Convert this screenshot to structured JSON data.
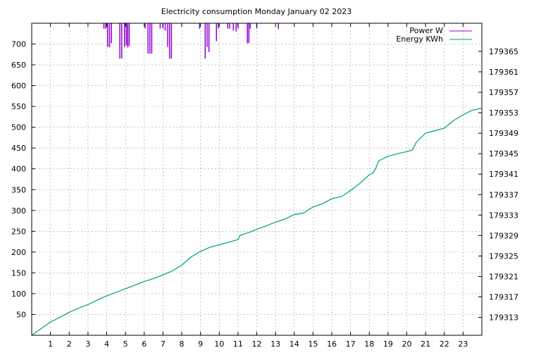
{
  "chart_data": {
    "type": "line",
    "title": "Electricity consumption Monday January 02 2023",
    "xlabel": "",
    "ylabel": "",
    "y2label": "",
    "x_ticks": [
      "1",
      "2",
      "3",
      "4",
      "5",
      "6",
      "7",
      "8",
      "9",
      "10",
      "11",
      "12",
      "13",
      "14",
      "15",
      "16",
      "17",
      "18",
      "19",
      "20",
      "21",
      "22",
      "23"
    ],
    "y_ticks": [
      "50",
      "100",
      "150",
      "200",
      "250",
      "300",
      "350",
      "400",
      "450",
      "500",
      "550",
      "600",
      "650",
      "700"
    ],
    "y2_ticks": [
      "179313",
      "179317",
      "179321",
      "179325",
      "179329",
      "179333",
      "179337",
      "179341",
      "179345",
      "179349",
      "179353",
      "179357",
      "179361",
      "179365"
    ],
    "xlim": [
      0,
      24
    ],
    "ylim": [
      0,
      750
    ],
    "y2lim": [
      179309.5,
      179370.5
    ],
    "grid": true,
    "legend_position": "top-right",
    "series": [
      {
        "name": "Power W",
        "axis": "y1",
        "color": "#9400d3",
        "style": "impulses",
        "x": [
          3.85,
          3.95,
          4.05,
          4.15,
          4.25,
          4.7,
          4.8,
          4.95,
          5.05,
          5.12,
          5.2,
          6.05,
          6.2,
          6.3,
          6.4,
          6.85,
          7.0,
          7.12,
          7.25,
          7.35,
          7.45,
          8.95,
          9.25,
          9.35,
          9.45,
          9.85,
          9.95,
          10.45,
          10.55,
          10.75,
          10.9,
          11.0,
          11.5,
          11.58,
          11.65,
          12.0,
          13.15
        ],
        "values": [
          737,
          737,
          693,
          692,
          702,
          665,
          665,
          693,
          697,
          692,
          695,
          737,
          677,
          677,
          677,
          737,
          737,
          732,
          693,
          665,
          665,
          737,
          665,
          693,
          681,
          707,
          737,
          737,
          737,
          732,
          730,
          737,
          702,
          702,
          737,
          737,
          736
        ]
      },
      {
        "name": "Energy KWh",
        "axis": "y2",
        "color": "#009e73",
        "style": "line",
        "x": [
          0,
          0.5,
          1,
          1.5,
          2,
          2.5,
          3,
          3.5,
          4,
          4.5,
          5,
          5.5,
          6,
          6.5,
          7,
          7.5,
          8,
          8.5,
          9,
          9.5,
          10,
          10.5,
          10.9,
          11.0,
          11.1,
          11.5,
          12,
          12.5,
          13,
          13.5,
          14,
          14.5,
          15,
          15.5,
          16,
          16.5,
          17,
          17.5,
          18,
          18.2,
          18.35,
          18.5,
          19,
          19.5,
          20,
          20.3,
          20.5,
          21,
          21.5,
          22,
          22.5,
          23,
          23.5,
          24
        ],
        "values": [
          179309.5,
          179310.8,
          179312.1,
          179313.0,
          179314.0,
          179314.8,
          179315.5,
          179316.4,
          179317.2,
          179317.9,
          179318.6,
          179319.3,
          179320.0,
          179320.6,
          179321.3,
          179322.1,
          179323.2,
          179324.8,
          179325.9,
          179326.7,
          179327.2,
          179327.7,
          179328.1,
          179328.2,
          179329.0,
          179329.5,
          179330.2,
          179330.9,
          179331.6,
          179332.2,
          179333.1,
          179333.4,
          179334.6,
          179335.2,
          179336.2,
          179336.6,
          179337.8,
          179339.2,
          179340.9,
          179341.2,
          179342.2,
          179343.6,
          179344.5,
          179345.0,
          179345.4,
          179345.7,
          179347.2,
          179349.0,
          179349.5,
          179350.0,
          179351.5,
          179352.6,
          179353.5,
          179353.9
        ]
      }
    ]
  }
}
